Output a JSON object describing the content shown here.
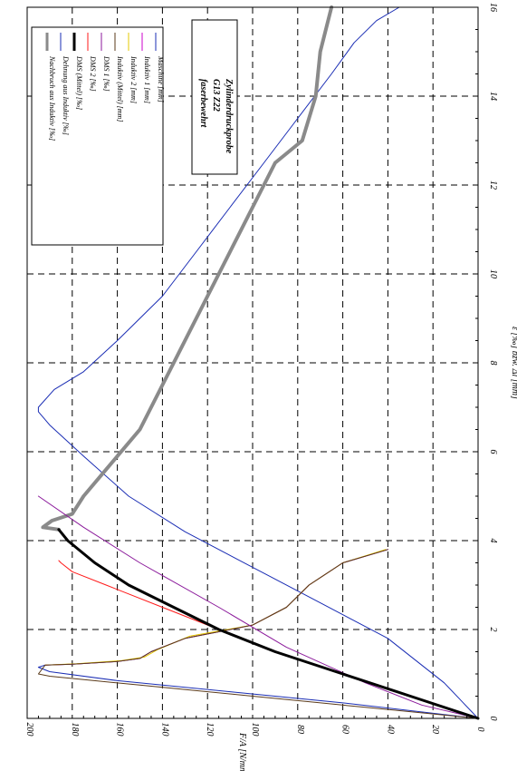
{
  "chart_data": {
    "type": "line",
    "orientation": "rotated-90-clockwise",
    "xlabel": "ε [‰] bzw. Δl [mm]",
    "ylabel": "F/A [N/mm²]",
    "xlim": [
      0,
      16
    ],
    "ylim": [
      0,
      200
    ],
    "x_ticks": [
      "0",
      "2",
      "4",
      "6",
      "8",
      "10",
      "12",
      "14",
      "16"
    ],
    "y_ticks": [
      "0",
      "20",
      "40",
      "60",
      "80",
      "100",
      "120",
      "140",
      "160",
      "180",
      "200"
    ],
    "grid": true,
    "legend_position": "top-right",
    "annotation": [
      "Zylinderdruckprobe",
      "G13 Z22",
      "faserbewehrt"
    ],
    "series": [
      {
        "name": "Maschine [mm]",
        "color": "#1a2db4",
        "width": 1,
        "points": [
          [
            0,
            0
          ],
          [
            0.35,
            60
          ],
          [
            0.6,
            110
          ],
          [
            0.85,
            160
          ],
          [
            1.05,
            190
          ],
          [
            1.15,
            195
          ],
          [
            1.2,
            192
          ],
          [
            1.22,
            180
          ],
          [
            1.28,
            160
          ],
          [
            1.35,
            150
          ],
          [
            1.5,
            145
          ],
          [
            1.8,
            130
          ],
          [
            2.1,
            100
          ],
          [
            2.5,
            85
          ],
          [
            3,
            75
          ],
          [
            3.5,
            60
          ],
          [
            3.8,
            40
          ]
        ]
      },
      {
        "name": "Induktiv 1 [mm]",
        "color": "#cc00cc",
        "width": 1,
        "points": [
          [
            1.2,
            192
          ],
          [
            1.22,
            180
          ],
          [
            1.28,
            160
          ],
          [
            1.35,
            150
          ],
          [
            1.5,
            145
          ],
          [
            1.8,
            130
          ],
          [
            2.1,
            100
          ],
          [
            2.5,
            85
          ],
          [
            3,
            75
          ],
          [
            3.5,
            60
          ],
          [
            3.8,
            40
          ]
        ]
      },
      {
        "name": "Induktiv 2 [mm]",
        "color": "#e6c800",
        "width": 1,
        "points": [
          [
            1.2,
            192
          ],
          [
            1.23,
            178
          ],
          [
            1.3,
            158
          ],
          [
            1.38,
            148
          ],
          [
            1.55,
            142
          ],
          [
            1.85,
            128
          ],
          [
            2.1,
            100
          ],
          [
            2.5,
            85
          ],
          [
            3,
            75
          ],
          [
            3.5,
            60
          ],
          [
            3.8,
            41
          ]
        ]
      },
      {
        "name": "Induktiv (Mittel) [mm]",
        "color": "#5a3a1a",
        "width": 1,
        "points": [
          [
            0,
            0
          ],
          [
            0.25,
            50
          ],
          [
            0.5,
            100
          ],
          [
            0.75,
            150
          ],
          [
            0.95,
            190
          ],
          [
            1.0,
            195
          ],
          [
            1.2,
            192
          ],
          [
            1.22,
            180
          ],
          [
            1.28,
            160
          ],
          [
            1.35,
            150
          ],
          [
            1.5,
            145
          ],
          [
            1.8,
            130
          ],
          [
            2.1,
            100
          ],
          [
            2.5,
            85
          ],
          [
            3,
            75
          ],
          [
            3.5,
            60
          ],
          [
            3.8,
            40
          ]
        ]
      },
      {
        "name": "DMS 1 [‰]",
        "color": "#8b1a9b",
        "width": 1,
        "points": [
          [
            0,
            0
          ],
          [
            0.3,
            25
          ],
          [
            0.8,
            50
          ],
          [
            1.6,
            85
          ],
          [
            2.5,
            115
          ],
          [
            3.5,
            150
          ],
          [
            4.3,
            175
          ],
          [
            5.0,
            195
          ]
        ]
      },
      {
        "name": "DMS 2 [‰]",
        "color": "#ff1a1a",
        "width": 1,
        "points": [
          [
            0,
            0
          ],
          [
            0.5,
            30
          ],
          [
            1.0,
            60
          ],
          [
            1.5,
            90
          ],
          [
            2.0,
            115
          ],
          [
            2.5,
            140
          ],
          [
            3.0,
            165
          ],
          [
            3.3,
            180
          ],
          [
            3.5,
            185
          ],
          [
            3.55,
            186
          ]
        ]
      },
      {
        "name": "DMS (Mittel) [‰]",
        "color": "#000000",
        "width": 3,
        "points": [
          [
            0,
            0
          ],
          [
            0.5,
            30
          ],
          [
            1.0,
            60
          ],
          [
            1.5,
            90
          ],
          [
            2.0,
            115
          ],
          [
            2.5,
            135
          ],
          [
            3.0,
            155
          ],
          [
            3.5,
            170
          ],
          [
            4.0,
            182
          ],
          [
            4.25,
            186
          ]
        ]
      },
      {
        "name": "Dehnung aus Induktiv [‰]",
        "color": "#1a2db4",
        "width": 1,
        "points": [
          [
            0,
            0
          ],
          [
            0.8,
            15
          ],
          [
            1.8,
            40
          ],
          [
            2.6,
            70
          ],
          [
            3.4,
            100
          ],
          [
            4.2,
            130
          ],
          [
            5.0,
            155
          ],
          [
            5.9,
            175
          ],
          [
            6.6,
            190
          ],
          [
            6.9,
            195
          ],
          [
            7.0,
            195
          ],
          [
            7.4,
            188
          ],
          [
            7.8,
            175
          ],
          [
            8.5,
            160
          ],
          [
            9.5,
            140
          ],
          [
            10.5,
            125
          ],
          [
            11.5,
            110
          ],
          [
            12.5,
            95
          ],
          [
            13.5,
            80
          ],
          [
            14.5,
            65
          ],
          [
            15.2,
            55
          ],
          [
            15.7,
            45
          ],
          [
            16,
            35
          ]
        ]
      },
      {
        "name": "Nachbruch aus Induktiv [‰]",
        "color": "#8a8a8a",
        "width": 4,
        "points": [
          [
            4.25,
            186
          ],
          [
            4.3,
            193
          ],
          [
            4.45,
            189
          ],
          [
            4.6,
            180
          ],
          [
            5.0,
            175
          ],
          [
            5.6,
            165
          ],
          [
            6.5,
            150
          ],
          [
            7.5,
            140
          ],
          [
            8.5,
            130
          ],
          [
            9.5,
            120
          ],
          [
            10.5,
            110
          ],
          [
            11.5,
            100
          ],
          [
            12.5,
            90
          ],
          [
            13.0,
            78
          ],
          [
            14.0,
            72
          ],
          [
            15.0,
            70
          ],
          [
            16.0,
            65
          ]
        ]
      }
    ]
  }
}
